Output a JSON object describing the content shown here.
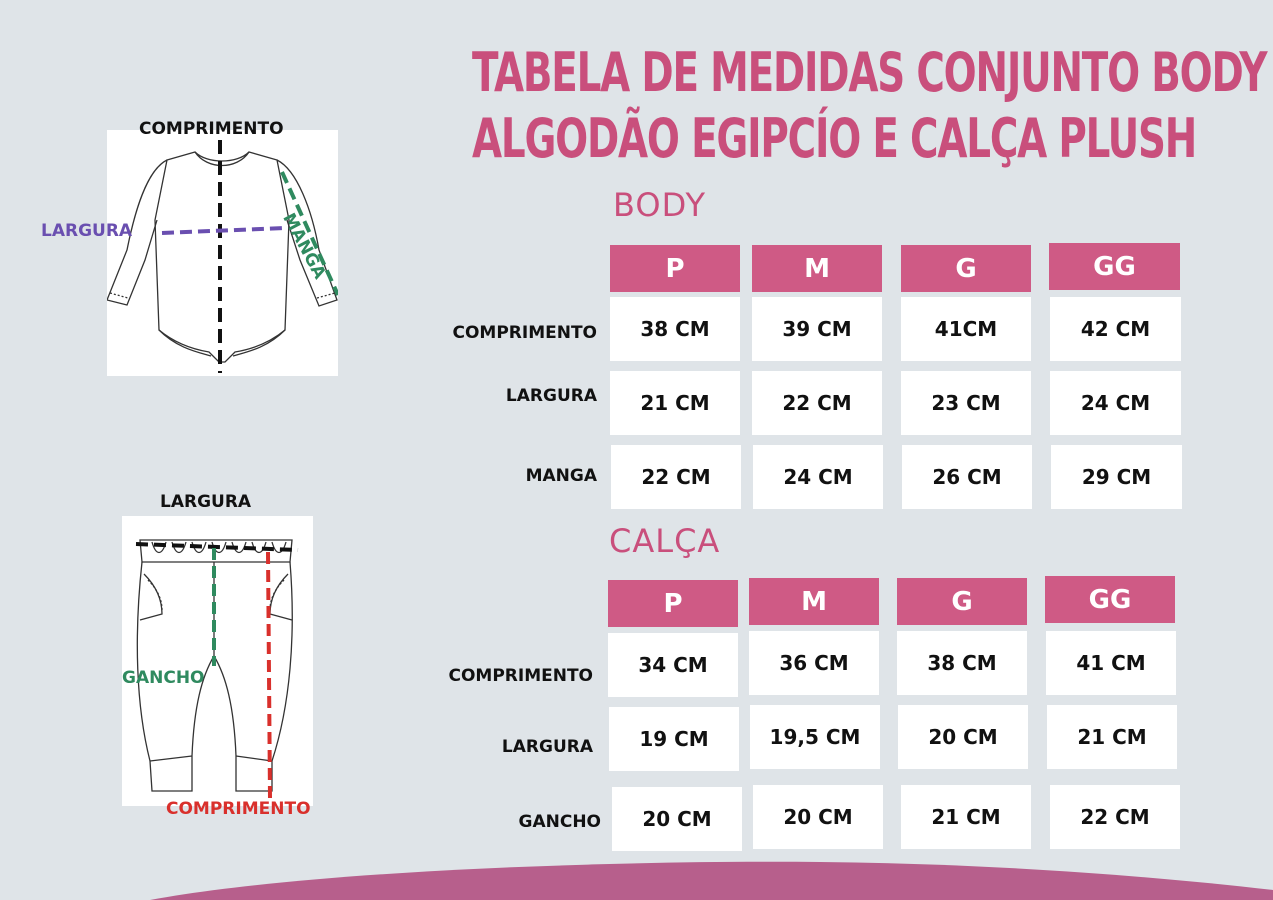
{
  "title": {
    "line1": "TABELA DE MEDIDAS CONJUNTO BODY",
    "line2": "ALGODÃO EGIPCÍO E CALÇA PLUSH"
  },
  "body_section": {
    "label": "BODY",
    "sizes": [
      "P",
      "M",
      "G",
      "GG"
    ],
    "rows": [
      {
        "label": "COMPRIMENTO",
        "values": [
          "38 CM",
          "39 CM",
          "41CM",
          "42 CM"
        ]
      },
      {
        "label": "LARGURA",
        "values": [
          "21 CM",
          "22 CM",
          "23 CM",
          "24 CM"
        ]
      },
      {
        "label": "MANGA",
        "values": [
          "22 CM",
          "24 CM",
          "26 CM",
          "29 CM"
        ]
      }
    ]
  },
  "pants_section": {
    "label": "CALÇA",
    "sizes": [
      "P",
      "M",
      "G",
      "GG"
    ],
    "rows": [
      {
        "label": "COMPRIMENTO",
        "values": [
          "34 CM",
          "36 CM",
          "38 CM",
          "41 CM"
        ]
      },
      {
        "label": "LARGURA",
        "values": [
          "19 CM",
          "19,5 CM",
          "20 CM",
          "21 CM"
        ]
      },
      {
        "label": "GANCHO",
        "values": [
          "20 CM",
          "20 CM",
          "21 CM",
          "22 CM"
        ]
      }
    ]
  },
  "body_illustration": {
    "comprimento": "COMPRIMENTO",
    "largura": "LARGURA",
    "manga": "MANGA",
    "colors": {
      "comprimento": "#111111",
      "largura": "#6a4fb0",
      "manga": "#2f8a5f"
    }
  },
  "pants_illustration": {
    "largura": "LARGURA",
    "gancho": "GANCHO",
    "comprimento": "COMPRIMENTO",
    "colors": {
      "largura": "#111111",
      "gancho": "#2f8a5f",
      "comprimento": "#d9302c"
    }
  },
  "colors": {
    "accent": "#c94f7c",
    "header": "#cf5a85",
    "background": "#dfe4e8",
    "wave": "#b75f8c"
  }
}
